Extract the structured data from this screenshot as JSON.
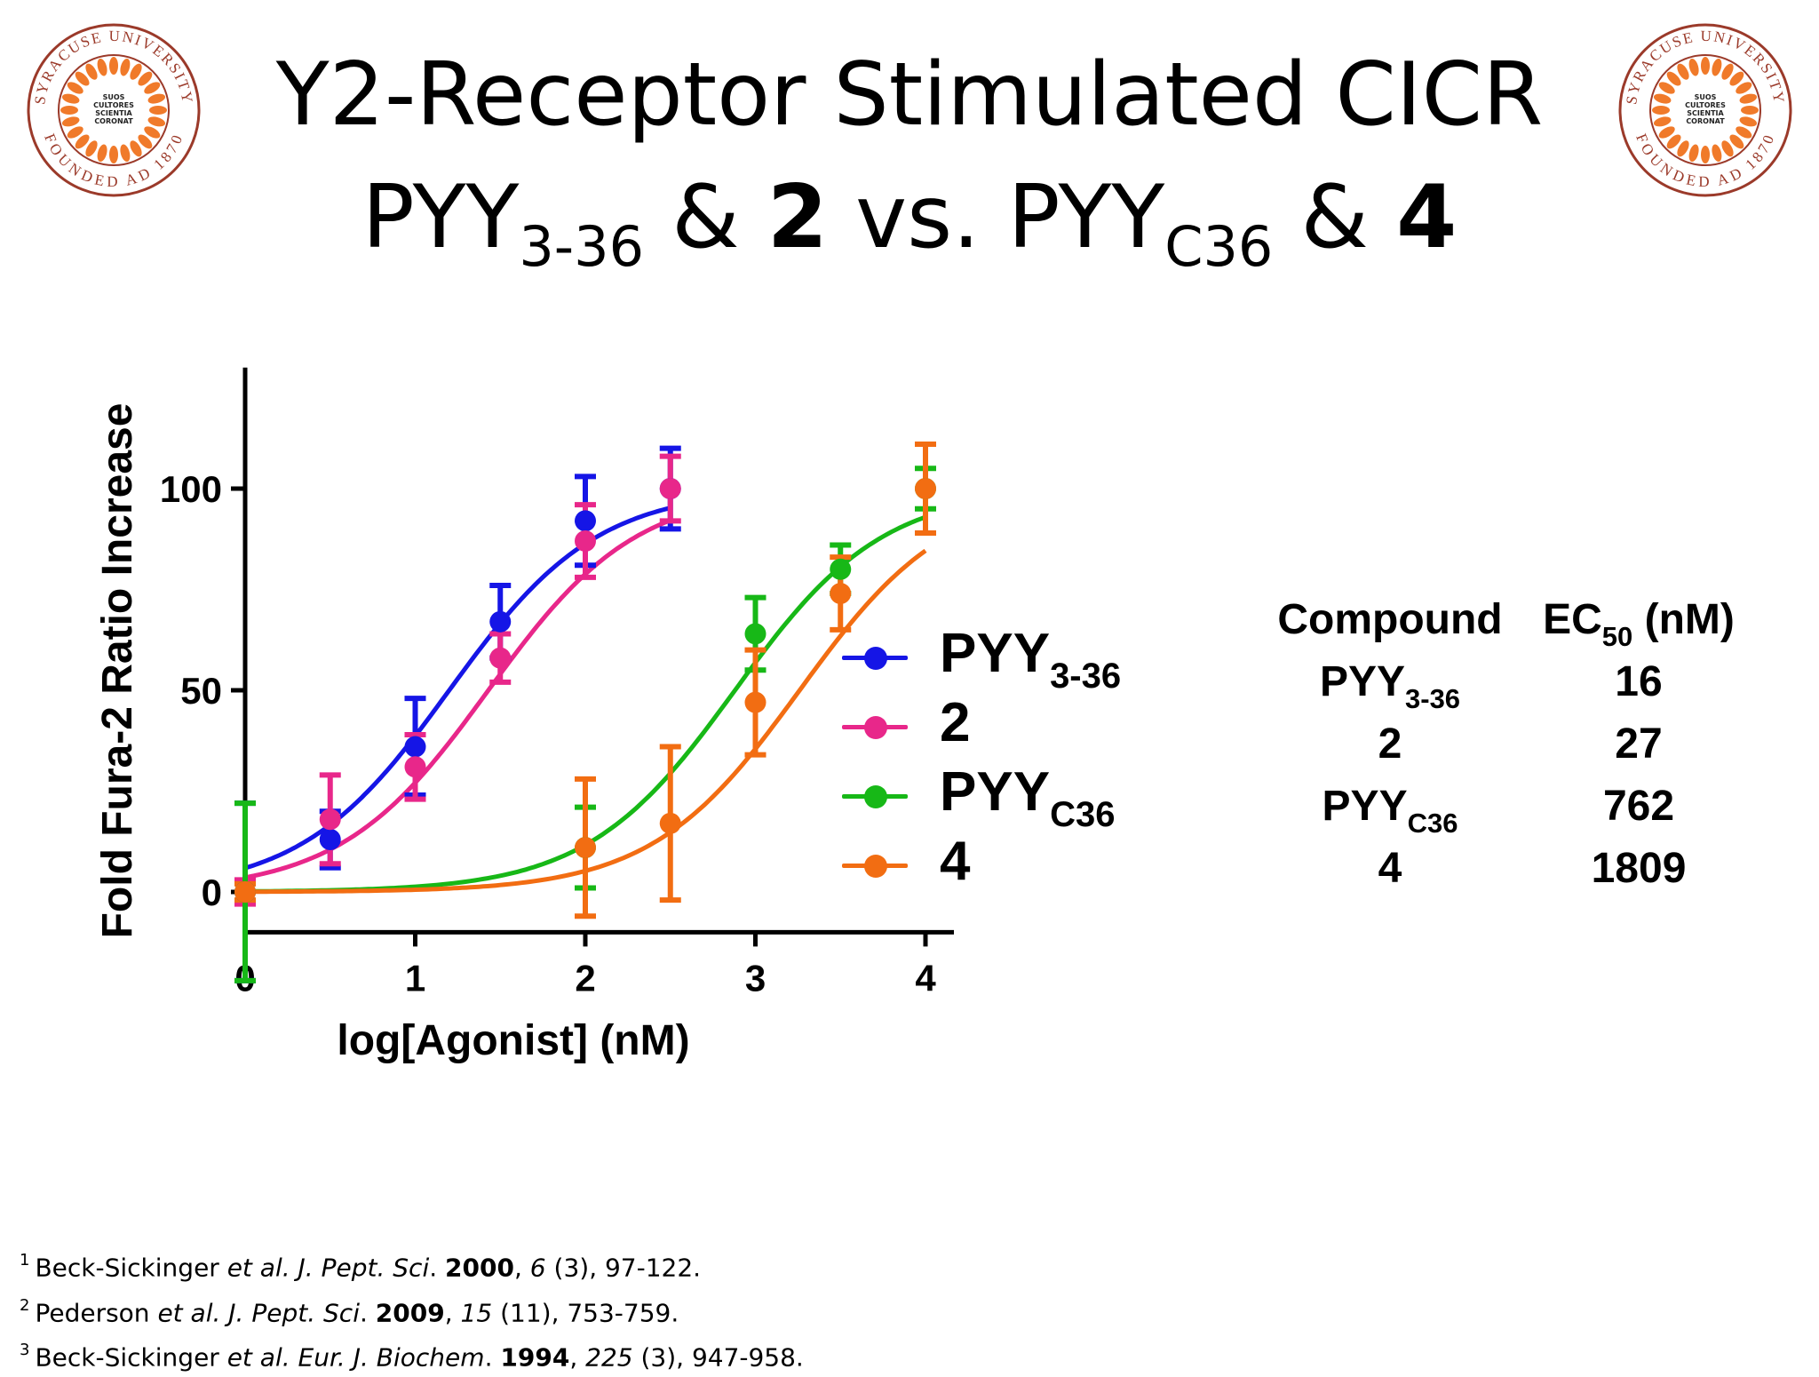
{
  "slide": {
    "title_line1": "Y2-Receptor Stimulated CICR",
    "title_line2": {
      "p1": "PYY",
      "p1_sub": "3-36",
      "amp1": " & ",
      "c1": "2",
      "vs": " vs. ",
      "p2": "PYY",
      "p2_sub": "C36",
      "amp2": " & ",
      "c2": "4"
    },
    "seal": {
      "ring_text_top": "SYRACUSE UNIVERSITY",
      "ring_text_bottom": "FOUNDED AD 1870",
      "motto": [
        "SUOS",
        "CULTORES",
        "SCIENTIA",
        "CORONAT"
      ],
      "ring_color": "#9b3a2a",
      "wreath_color": "#f07a2a"
    }
  },
  "legend": [
    {
      "label": "PYY",
      "sub": "3-36",
      "color": "#1515e6"
    },
    {
      "label": "2",
      "sub": "",
      "color": "#e8278a"
    },
    {
      "label": "PYY",
      "sub": "C36",
      "color": "#17b817"
    },
    {
      "label": "4",
      "sub": "",
      "color": "#f26d12"
    }
  ],
  "ec50_table": {
    "header_compound": "Compound",
    "header_ec": "EC",
    "header_ec_sub": "50",
    "header_unit": " (nM)",
    "rows": [
      {
        "name": "PYY",
        "sub": "3-36",
        "value": "16"
      },
      {
        "name": "2",
        "sub": "",
        "value": "27"
      },
      {
        "name": "PYY",
        "sub": "C36",
        "value": "762"
      },
      {
        "name": "4",
        "sub": "",
        "value": "1809"
      }
    ]
  },
  "references": [
    {
      "num": "1",
      "authors": "Beck-Sickinger ",
      "etal": "et al",
      "journal": ". J. Pept. Sci",
      "dot": ". ",
      "year": "2000",
      "comma": ", ",
      "vol": "6",
      "rest": " (3), 97-122."
    },
    {
      "num": "2",
      "authors": "Pederson ",
      "etal": "et al",
      "journal": ". J. Pept. Sci",
      "dot": ". ",
      "year": "2009",
      "comma": ", ",
      "vol": "15",
      "rest": " (11), 753-759."
    },
    {
      "num": "3",
      "authors": "Beck-Sickinger ",
      "etal": "et al",
      "journal": ". Eur. J. Biochem",
      "dot": ". ",
      "year": "1994",
      "comma": ", ",
      "vol": "225",
      "rest": " (3), 947-958."
    }
  ],
  "chart_data": {
    "type": "scatter",
    "title": "",
    "xlabel": "log[Agonist] (nM)",
    "ylabel": "Fold Fura-2 Ratio Increase",
    "xlim": [
      0,
      4
    ],
    "ylim": [
      -10,
      130
    ],
    "xticks": [
      0,
      1,
      2,
      3,
      4
    ],
    "yticks": [
      0,
      50,
      100
    ],
    "grid": false,
    "legend_position": "right",
    "series": [
      {
        "name": "PYY3-36",
        "color": "#1515e6",
        "ec50_log": 1.2,
        "x": [
          0,
          0.5,
          1.0,
          1.5,
          2.0,
          2.5
        ],
        "y": [
          0,
          13,
          36,
          67,
          92,
          100
        ],
        "err": [
          22,
          7,
          12,
          9,
          11,
          10
        ]
      },
      {
        "name": "2",
        "color": "#e8278a",
        "ec50_log": 1.43,
        "x": [
          0,
          0.5,
          1.0,
          1.5,
          2.0,
          2.5
        ],
        "y": [
          0,
          18,
          31,
          58,
          87,
          100
        ],
        "err": [
          3,
          11,
          8,
          6,
          9,
          8
        ]
      },
      {
        "name": "PYYC36",
        "color": "#17b817",
        "ec50_log": 2.88,
        "x": [
          0,
          2.0,
          3.0,
          3.5,
          4.0
        ],
        "y": [
          0,
          11,
          64,
          80,
          100
        ],
        "err": [
          22,
          10,
          9,
          6,
          5
        ]
      },
      {
        "name": "4",
        "color": "#f26d12",
        "ec50_log": 3.26,
        "x": [
          0,
          2.0,
          2.5,
          3.0,
          3.5,
          4.0
        ],
        "y": [
          0,
          11,
          17,
          47,
          74,
          100
        ],
        "err": [
          2,
          17,
          19,
          13,
          9,
          11
        ]
      }
    ]
  }
}
